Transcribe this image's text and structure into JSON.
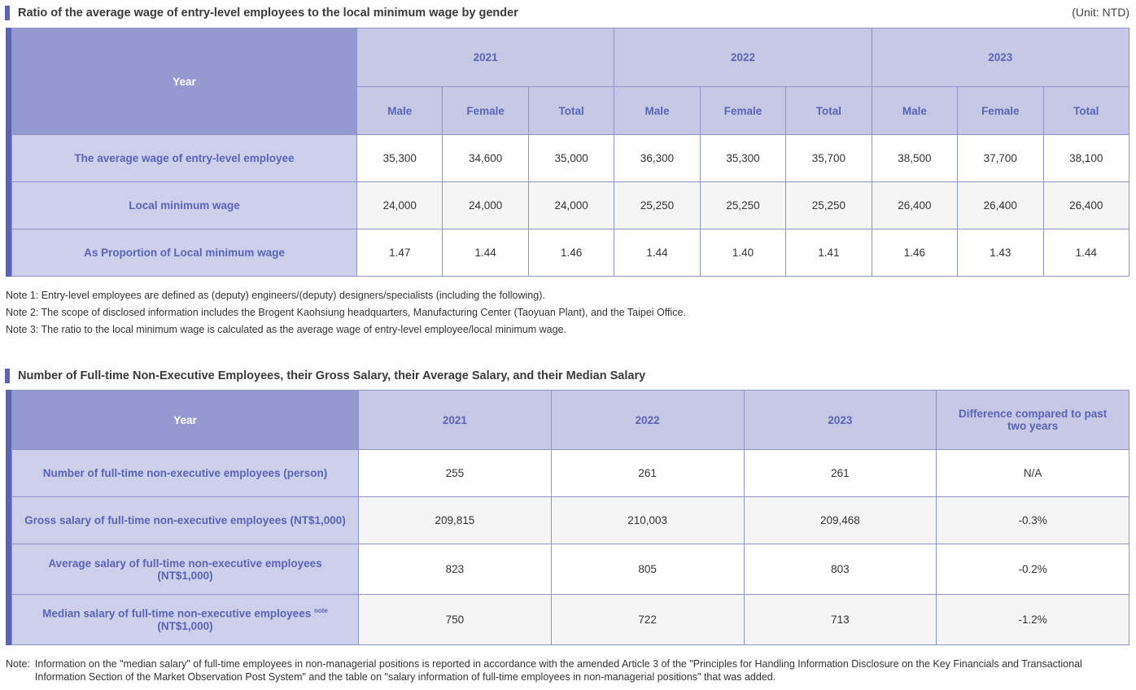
{
  "table1": {
    "title": "Ratio of the average wage of entry-level employees to the local minimum wage by gender",
    "unit": "(Unit: NTD)",
    "year_label": "Year",
    "years": [
      "2021",
      "2022",
      "2023"
    ],
    "sub_headers": [
      "Male",
      "Female",
      "Total",
      "Male",
      "Female",
      "Total",
      "Male",
      "Female",
      "Total"
    ],
    "rows": [
      {
        "label": "The average wage of entry-level employee",
        "values": [
          "35,300",
          "34,600",
          "35,000",
          "36,300",
          "35,300",
          "35,700",
          "38,500",
          "37,700",
          "38,100"
        ]
      },
      {
        "label": "Local minimum wage",
        "values": [
          "24,000",
          "24,000",
          "24,000",
          "25,250",
          "25,250",
          "25,250",
          "26,400",
          "26,400",
          "26,400"
        ]
      },
      {
        "label": "As Proportion of Local minimum wage",
        "values": [
          "1.47",
          "1.44",
          "1.46",
          "1.44",
          "1.40",
          "1.41",
          "1.46",
          "1.43",
          "1.44"
        ]
      }
    ],
    "notes": [
      "Note 1: Entry-level employees are defined as (deputy) engineers/(deputy) designers/specialists (including the following).",
      "Note 2: The scope of disclosed information includes the Brogent Kaohsiung headquarters, Manufacturing Center (Taoyuan Plant), and the Taipei Office.",
      "Note 3: The ratio to the local minimum wage is calculated as the average wage of entry-level employee/local minimum wage."
    ]
  },
  "table2": {
    "title": "Number of Full-time Non-Executive Employees, their Gross Salary, their Average Salary, and their Median Salary",
    "year_label": "Year",
    "headers": [
      "2021",
      "2022",
      "2023",
      "Difference compared to past two years"
    ],
    "rows": [
      {
        "label": "Number of full-time non-executive employees (person)",
        "values": [
          "255",
          "261",
          "261",
          "N/A"
        ]
      },
      {
        "label": "Gross salary of full-time non-executive employees (NT$1,000)",
        "values": [
          "209,815",
          "210,003",
          "209,468",
          "-0.3%"
        ]
      },
      {
        "label": "Average salary of full-time non-executive employees (NT$1,000)",
        "values": [
          "823",
          "805",
          "803",
          "-0.2%"
        ]
      },
      {
        "label": "Median salary of full-time non-executive employees",
        "label_sup": "note",
        "label_tail": "(NT$1,000)",
        "values": [
          "750",
          "722",
          "713",
          "-1.2%"
        ]
      }
    ],
    "note_label": "Note:",
    "note_text": "Information on the \"median salary\" of full-time employees in non-managerial positions is reported in accordance with the amended Article 3 of the \"Principles for Handling Information Disclosure on the Key Financials and Transactional Information Section of the Market Observation Post System\" and the table on \"salary information of full-time employees in non-managerial positions\" that was added."
  },
  "colors": {
    "accent": "#5b63b5",
    "header_dark": "#9599cf",
    "header_light": "#c6c8e6",
    "row_label_bg": "#cdcfeb",
    "alt_row": "#f5f5f5"
  }
}
